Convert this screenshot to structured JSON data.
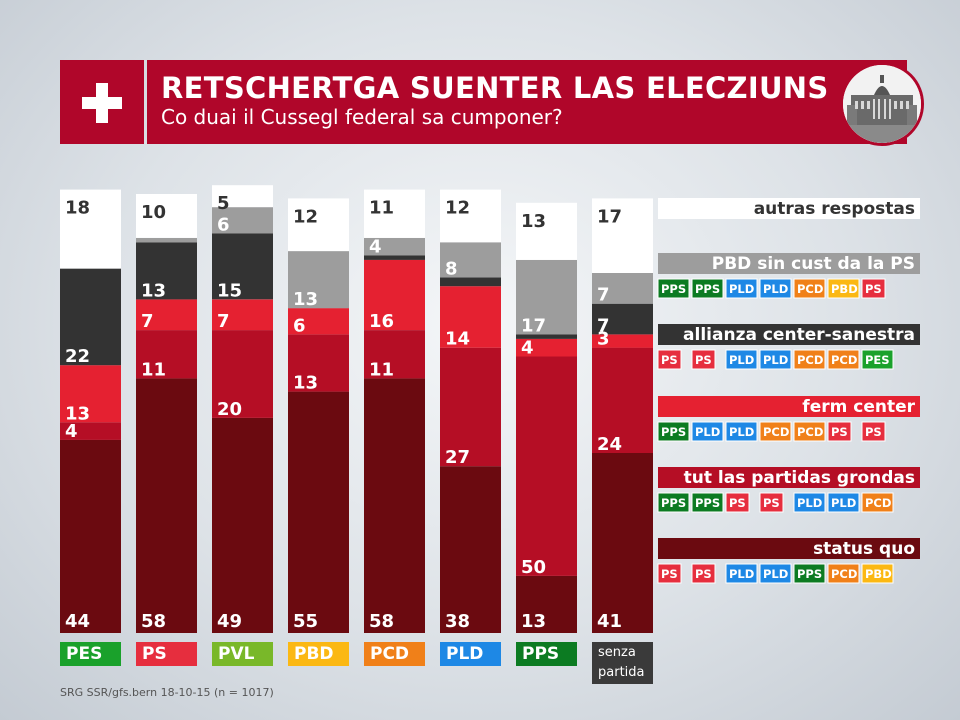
{
  "header": {
    "title": "RETSCHERTGA SUENTER LAS ELECZIUNS",
    "subtitle": "Co duai il Cussegl federal sa cumponer?"
  },
  "source": "SRG SSR/gfs.bern 18-10-15 (n = 1017)",
  "colors": {
    "status_quo": "#6b0a10",
    "tut_las_partidas_grondas": "#b50e25",
    "ferm_center": "#e52131",
    "allianza_center_sanestra": "#333333",
    "pbd_sin_cust_da_la_ps": "#9d9d9d",
    "autras_respostas": "#ffffff",
    "PES": "#1aa12b",
    "PS": "#e62e3e",
    "PVL": "#79b829",
    "PBD": "#fbb813",
    "PCD": "#f08019",
    "PLD": "#1e88e5",
    "PPS": "#0c7b22",
    "senza": "#3a3a3a"
  },
  "chart_data": {
    "type": "bar",
    "stacked": true,
    "categories": [
      "PES",
      "PS",
      "PVL",
      "PBD",
      "PCD",
      "PLD",
      "PPS",
      "senza partida"
    ],
    "category_colors": [
      "#1aa12b",
      "#e62e3e",
      "#79b829",
      "#fbb813",
      "#f08019",
      "#1e88e5",
      "#0c7b22",
      "#3a3a3a"
    ],
    "series": [
      {
        "name": "status quo",
        "color": "#6b0a10",
        "values": [
          44,
          58,
          49,
          55,
          58,
          38,
          13,
          41
        ]
      },
      {
        "name": "tut las partidas grondas",
        "color": "#b50e25",
        "values": [
          4,
          11,
          20,
          13,
          11,
          27,
          50,
          24
        ]
      },
      {
        "name": "ferm center",
        "color": "#e52131",
        "values": [
          13,
          7,
          7,
          6,
          16,
          14,
          4,
          3
        ]
      },
      {
        "name": "allianza center-sanestra",
        "color": "#333333",
        "values": [
          22,
          13,
          15,
          0,
          1,
          2,
          1,
          7
        ]
      },
      {
        "name": "PBD sin cust da la PS",
        "color": "#9d9d9d",
        "values": [
          0,
          1,
          6,
          13,
          4,
          8,
          17,
          7
        ]
      },
      {
        "name": "autras respostas",
        "color": "#ffffff",
        "values": [
          18,
          10,
          5,
          12,
          11,
          12,
          13,
          17
        ]
      }
    ],
    "value_labels": [
      [
        "44",
        "58",
        "49",
        "55",
        "58",
        "38",
        "13",
        "41"
      ],
      [
        "4",
        "11",
        "20",
        "13",
        "11",
        "27",
        "50",
        "24"
      ],
      [
        "13",
        "7",
        "7",
        "6",
        "16",
        "14",
        "4",
        "3"
      ],
      [
        "22",
        "13",
        "15",
        "",
        "",
        "",
        "",
        "7"
      ],
      [
        "",
        "",
        "6",
        "13",
        "4",
        "8",
        "17",
        "7"
      ],
      [
        "18",
        "10",
        "5",
        "12",
        "11",
        "12",
        "13",
        "17"
      ]
    ],
    "ylim": [
      0,
      100
    ],
    "legend_placement": "right",
    "legend": [
      {
        "label": "autras respostas",
        "color": "#ffffff",
        "text_color": "#333333",
        "parties": []
      },
      {
        "label": "PBD sin cust da la PS",
        "color": "#9d9d9d",
        "text_color": "#ffffff",
        "parties": [
          "PPS",
          "PPS",
          "PLD",
          "PLD",
          "PCD",
          "PBD",
          "PS"
        ]
      },
      {
        "label": "allianza center-sanestra",
        "color": "#333333",
        "text_color": "#ffffff",
        "parties": [
          "PS",
          "PS",
          "PLD",
          "PLD",
          "PCD",
          "PCD",
          "PES"
        ]
      },
      {
        "label": "ferm center",
        "color": "#e52131",
        "text_color": "#ffffff",
        "parties": [
          "PPS",
          "PLD",
          "PLD",
          "PCD",
          "PCD",
          "PS",
          "PS"
        ]
      },
      {
        "label": "tut las partidas grondas",
        "color": "#b50e25",
        "text_color": "#ffffff",
        "parties": [
          "PPS",
          "PPS",
          "PS",
          "PS",
          "PLD",
          "PLD",
          "PCD"
        ]
      },
      {
        "label": "status quo",
        "color": "#6b0a10",
        "text_color": "#ffffff",
        "parties": [
          "PS",
          "PS",
          "PLD",
          "PLD",
          "PPS",
          "PCD",
          "PBD"
        ]
      }
    ]
  },
  "party_labels": [
    "PES",
    "PS",
    "PVL",
    "PBD",
    "PCD",
    "PLD",
    "PPS",
    "senza\npartida"
  ]
}
